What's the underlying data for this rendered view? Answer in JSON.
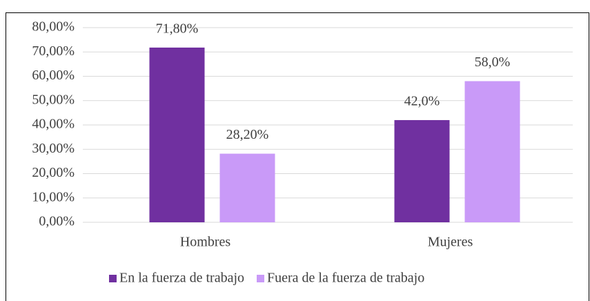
{
  "chart_data": {
    "type": "bar",
    "categories": [
      "Hombres",
      "Mujeres"
    ],
    "series": [
      {
        "name": "En la fuerza de trabajo",
        "color": "#7030a0",
        "values": [
          71.8,
          42.0
        ],
        "value_labels": [
          "71,80%",
          "42,0%"
        ]
      },
      {
        "name": "Fuera de la fuerza de trabajo",
        "color": "#c99af8",
        "values": [
          28.2,
          58.0
        ],
        "value_labels": [
          "28,20%",
          "58,0%"
        ]
      }
    ],
    "ylim": [
      0,
      80
    ],
    "yticks": [
      {
        "value": 0,
        "label": "0,00%"
      },
      {
        "value": 10,
        "label": "10,00%"
      },
      {
        "value": 20,
        "label": "20,00%"
      },
      {
        "value": 30,
        "label": "30,00%"
      },
      {
        "value": 40,
        "label": "40,00%"
      },
      {
        "value": 50,
        "label": "50,00%"
      },
      {
        "value": 60,
        "label": "60,00%"
      },
      {
        "value": 70,
        "label": "70,00%"
      },
      {
        "value": 80,
        "label": "80,00%"
      }
    ],
    "grid": true,
    "legend": "bottom"
  }
}
